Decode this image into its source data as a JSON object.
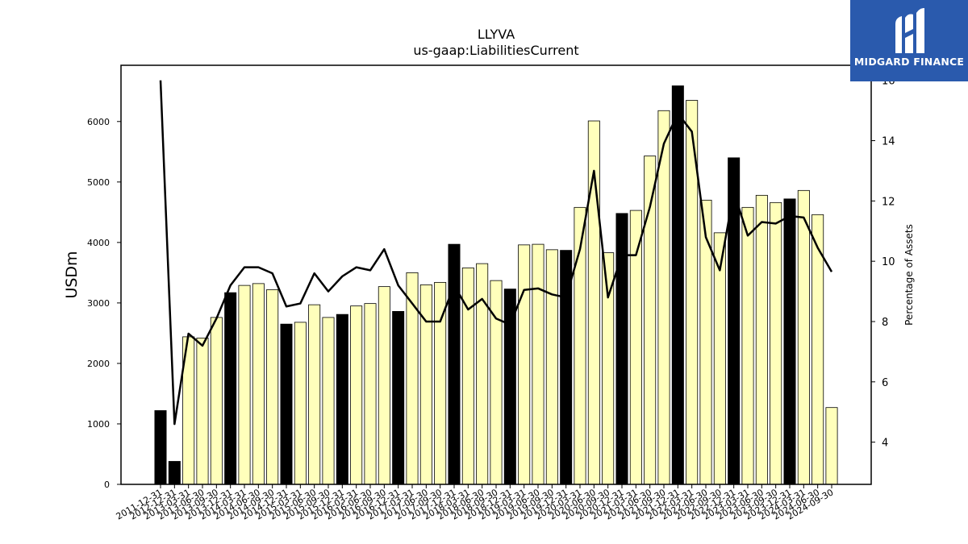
{
  "brand": {
    "name": "MIDGARD FINANCE",
    "mark_icon": "midgard-logo-icon",
    "bg_color": "#2a5aad"
  },
  "chart_data": {
    "type": "bar",
    "title": "LLYVA",
    "subtitle": "us-gaap:LiabilitiesCurrent",
    "ylabel": "USDm",
    "y2label": "Percentage of Assets",
    "ylim": [
      0,
      6930
    ],
    "y2lim": [
      2.6,
      16.5
    ],
    "yticks": [
      0,
      1000,
      2000,
      3000,
      4000,
      5000,
      6000
    ],
    "y2ticks": [
      4,
      6,
      8,
      10,
      12,
      14,
      16
    ],
    "colors": {
      "annual_bar": "#000000",
      "quarter_bar": "#ffffbb",
      "line": "#000000"
    },
    "categories": [
      "2011-12-31",
      "2012-12-31",
      "2013-03-31",
      "2013-06-30",
      "2013-09-30",
      "2013-12-31",
      "2014-03-31",
      "2014-06-30",
      "2014-09-30",
      "2014-12-31",
      "2015-03-31",
      "2015-06-30",
      "2015-09-30",
      "2015-12-31",
      "2016-03-31",
      "2016-06-30",
      "2016-09-30",
      "2016-12-31",
      "2017-03-31",
      "2017-06-30",
      "2017-09-30",
      "2017-12-31",
      "2018-03-31",
      "2018-06-30",
      "2018-09-30",
      "2018-12-31",
      "2019-03-31",
      "2019-06-30",
      "2019-09-30",
      "2019-12-31",
      "2020-03-31",
      "2020-06-30",
      "2020-09-30",
      "2020-12-31",
      "2021-03-31",
      "2021-06-30",
      "2021-09-30",
      "2021-12-31",
      "2022-03-31",
      "2022-06-30",
      "2022-09-30",
      "2022-12-31",
      "2023-03-31",
      "2023-06-30",
      "2023-09-30",
      "2023-12-31",
      "2024-03-31",
      "2024-06-30",
      "2024-09-30"
    ],
    "values": [
      1220,
      380,
      2440,
      2420,
      2760,
      3170,
      3290,
      3320,
      3220,
      2650,
      2680,
      2970,
      2760,
      2810,
      2950,
      2990,
      3270,
      2860,
      3500,
      3300,
      3340,
      3970,
      3580,
      3650,
      3370,
      3230,
      3960,
      3970,
      3880,
      3870,
      4580,
      6010,
      3830,
      4480,
      4530,
      5430,
      6180,
      6590,
      6350,
      4700,
      4160,
      5400,
      4580,
      4780,
      4660,
      4720,
      4860,
      4460,
      1270
    ],
    "annual": [
      true,
      true,
      false,
      false,
      false,
      true,
      false,
      false,
      false,
      true,
      false,
      false,
      false,
      true,
      false,
      false,
      false,
      true,
      false,
      false,
      false,
      true,
      false,
      false,
      false,
      true,
      false,
      false,
      false,
      true,
      false,
      false,
      false,
      true,
      false,
      false,
      false,
      true,
      false,
      false,
      false,
      true,
      false,
      false,
      false,
      true,
      false,
      false,
      false
    ],
    "pct_of_assets": [
      16.0,
      4.6,
      7.6,
      7.2,
      8.1,
      9.2,
      9.8,
      9.8,
      9.6,
      8.5,
      8.6,
      9.6,
      9.0,
      9.5,
      9.8,
      9.7,
      10.4,
      9.2,
      8.6,
      8.0,
      8.0,
      9.2,
      8.4,
      8.75,
      8.1,
      7.9,
      9.05,
      9.1,
      8.9,
      8.8,
      10.4,
      13.0,
      8.8,
      10.2,
      10.2,
      11.8,
      13.9,
      14.9,
      14.3,
      10.8,
      9.7,
      12.3,
      10.85,
      11.3,
      11.25,
      11.5,
      11.45,
      10.45,
      9.65
    ]
  }
}
